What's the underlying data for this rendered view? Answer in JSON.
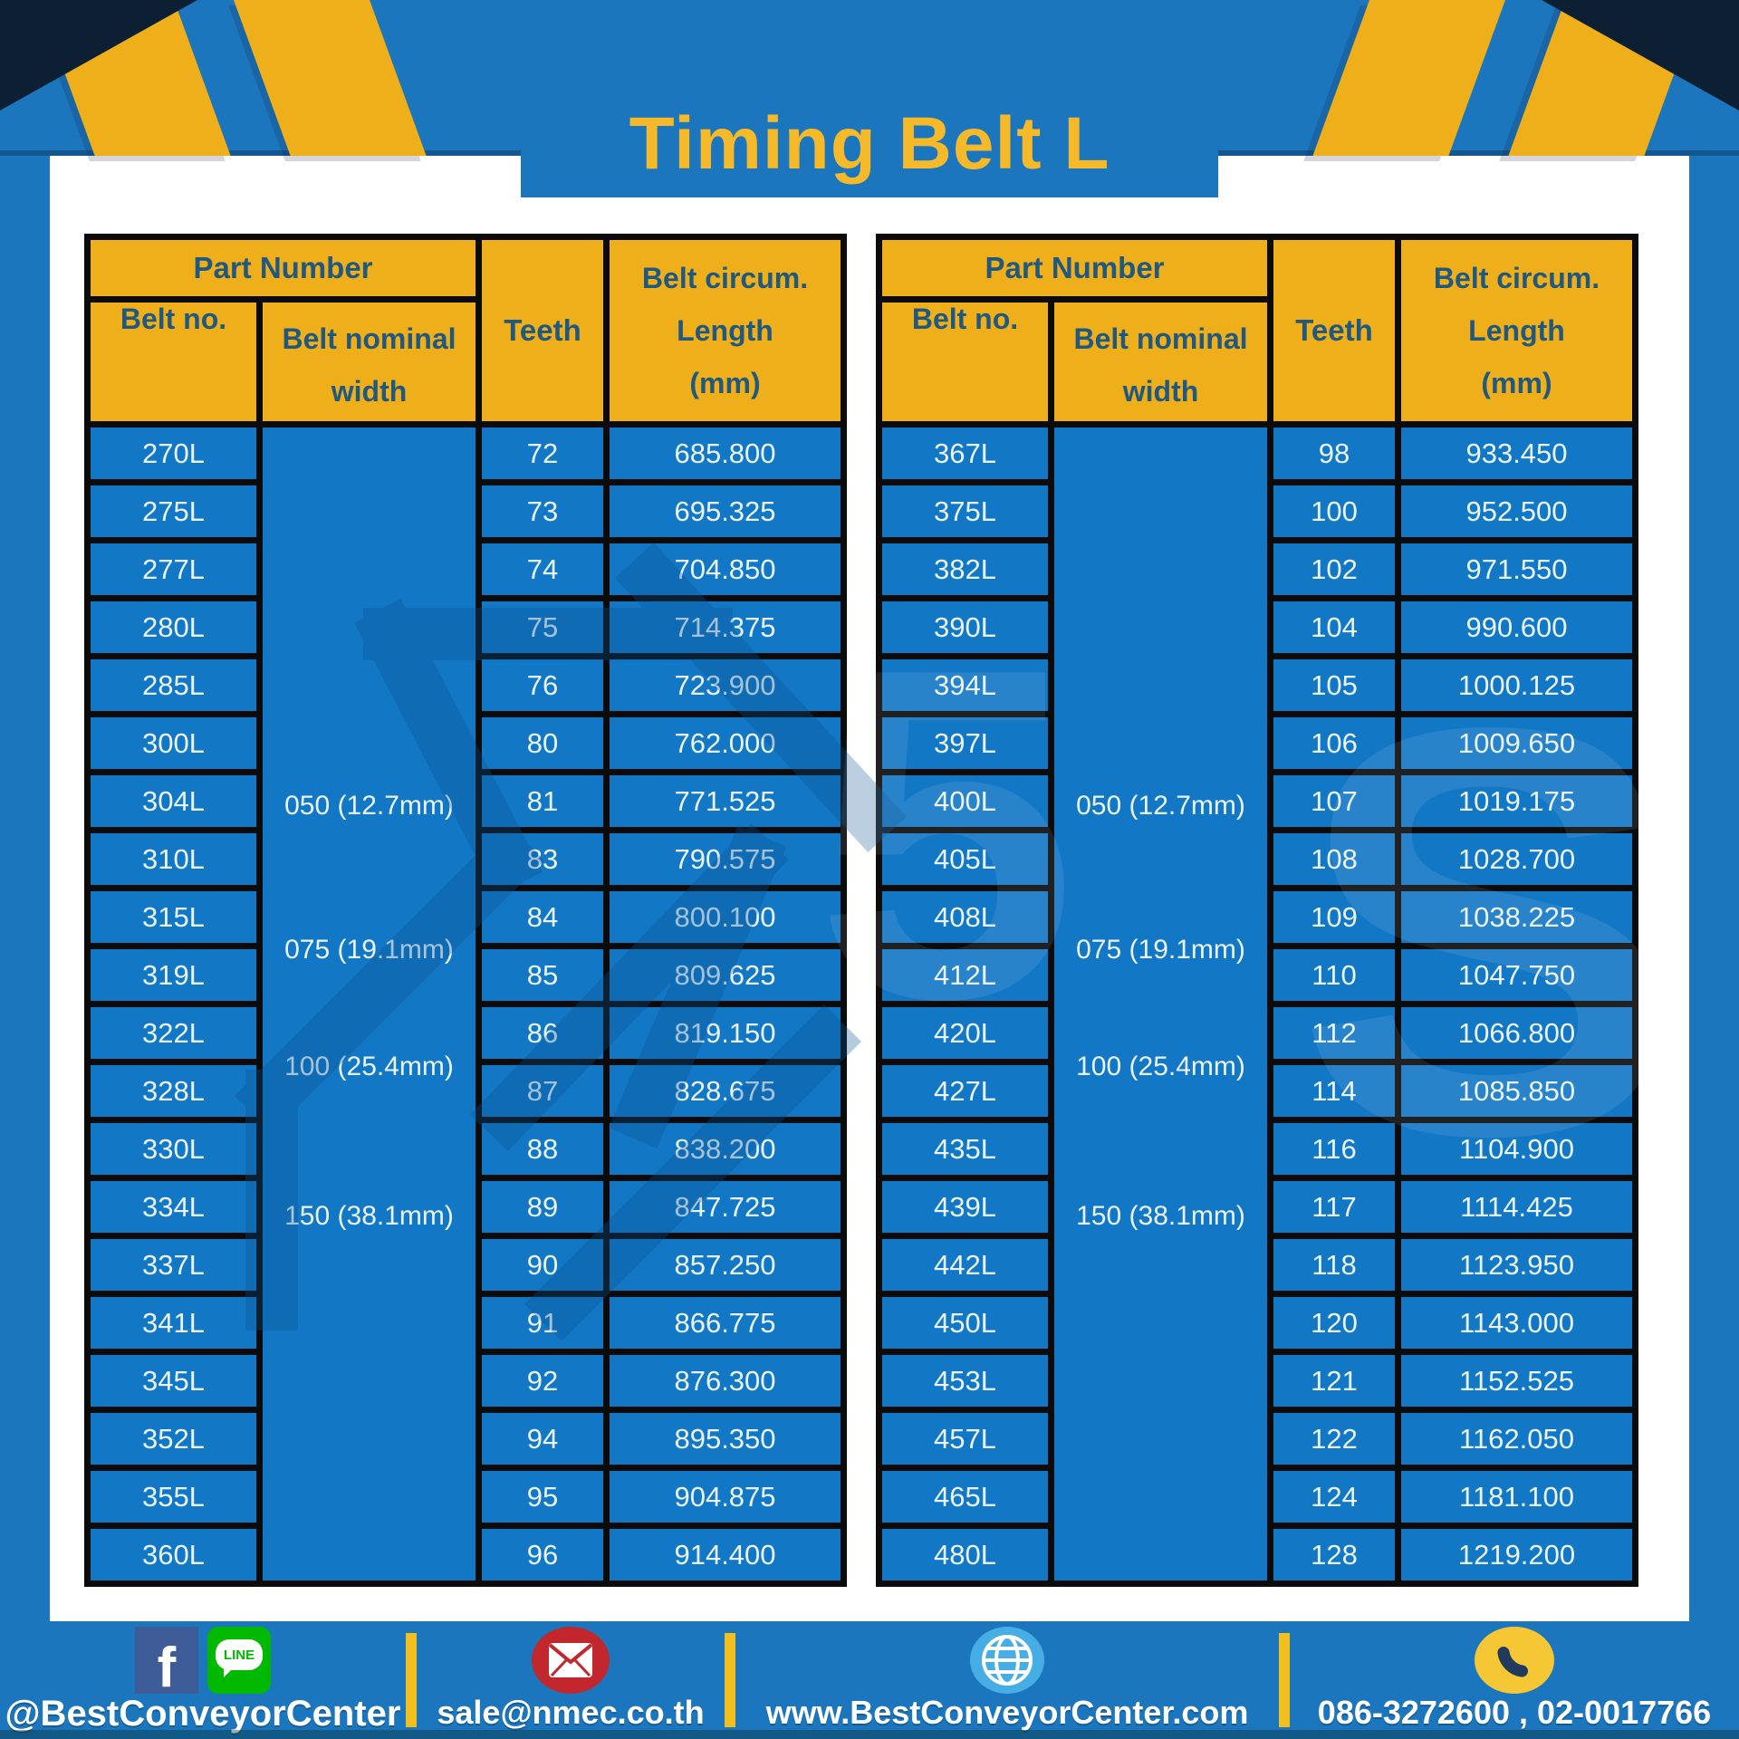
{
  "title": "Timing Belt L",
  "colors": {
    "brand_blue": "#1B76BD",
    "cell_blue": "#1277C5",
    "accent_yellow": "#EFAF1B",
    "title_yellow": "#F5B929",
    "header_text_navy": "#20587F",
    "footer_divider_yellow": "#F2C01E"
  },
  "tables": [
    {
      "header": {
        "part_number": "Part Number",
        "belt_no": "Belt no.",
        "belt_nominal_line1": "Belt nominal",
        "belt_nominal_line2": "width",
        "teeth": "Teeth",
        "circ_line1": "Belt circum.",
        "circ_line2": "Length",
        "circ_line3": "(mm)"
      },
      "width_labels": [
        "050 (12.7mm)",
        "075 (19.1mm)",
        "100 (25.4mm)",
        "150 (38.1mm)"
      ],
      "rows": [
        {
          "belt_no": "270L",
          "teeth": "72",
          "length_mm": "685.800"
        },
        {
          "belt_no": "275L",
          "teeth": "73",
          "length_mm": "695.325"
        },
        {
          "belt_no": "277L",
          "teeth": "74",
          "length_mm": "704.850"
        },
        {
          "belt_no": "280L",
          "teeth": "75",
          "length_mm": "714.375"
        },
        {
          "belt_no": "285L",
          "teeth": "76",
          "length_mm": "723.900"
        },
        {
          "belt_no": "300L",
          "teeth": "80",
          "length_mm": "762.000"
        },
        {
          "belt_no": "304L",
          "teeth": "81",
          "length_mm": "771.525"
        },
        {
          "belt_no": "310L",
          "teeth": "83",
          "length_mm": "790.575"
        },
        {
          "belt_no": "315L",
          "teeth": "84",
          "length_mm": "800.100"
        },
        {
          "belt_no": "319L",
          "teeth": "85",
          "length_mm": "809.625"
        },
        {
          "belt_no": "322L",
          "teeth": "86",
          "length_mm": "819.150"
        },
        {
          "belt_no": "328L",
          "teeth": "87",
          "length_mm": "828.675"
        },
        {
          "belt_no": "330L",
          "teeth": "88",
          "length_mm": "838.200"
        },
        {
          "belt_no": "334L",
          "teeth": "89",
          "length_mm": "847.725"
        },
        {
          "belt_no": "337L",
          "teeth": "90",
          "length_mm": "857.250"
        },
        {
          "belt_no": "341L",
          "teeth": "91",
          "length_mm": "866.775"
        },
        {
          "belt_no": "345L",
          "teeth": "92",
          "length_mm": "876.300"
        },
        {
          "belt_no": "352L",
          "teeth": "94",
          "length_mm": "895.350"
        },
        {
          "belt_no": "355L",
          "teeth": "95",
          "length_mm": "904.875"
        },
        {
          "belt_no": "360L",
          "teeth": "96",
          "length_mm": "914.400"
        }
      ]
    },
    {
      "header": {
        "part_number": "Part Number",
        "belt_no": "Belt no.",
        "belt_nominal_line1": "Belt nominal",
        "belt_nominal_line2": "width",
        "teeth": "Teeth",
        "circ_line1": "Belt circum.",
        "circ_line2": "Length",
        "circ_line3": "(mm)"
      },
      "width_labels": [
        "050 (12.7mm)",
        "075 (19.1mm)",
        "100 (25.4mm)",
        "150 (38.1mm)"
      ],
      "rows": [
        {
          "belt_no": "367L",
          "teeth": "98",
          "length_mm": "933.450"
        },
        {
          "belt_no": "375L",
          "teeth": "100",
          "length_mm": "952.500"
        },
        {
          "belt_no": "382L",
          "teeth": "102",
          "length_mm": "971.550"
        },
        {
          "belt_no": "390L",
          "teeth": "104",
          "length_mm": "990.600"
        },
        {
          "belt_no": "394L",
          "teeth": "105",
          "length_mm": "1000.125"
        },
        {
          "belt_no": "397L",
          "teeth": "106",
          "length_mm": "1009.650"
        },
        {
          "belt_no": "400L",
          "teeth": "107",
          "length_mm": "1019.175"
        },
        {
          "belt_no": "405L",
          "teeth": "108",
          "length_mm": "1028.700"
        },
        {
          "belt_no": "408L",
          "teeth": "109",
          "length_mm": "1038.225"
        },
        {
          "belt_no": "412L",
          "teeth": "110",
          "length_mm": "1047.750"
        },
        {
          "belt_no": "420L",
          "teeth": "112",
          "length_mm": "1066.800"
        },
        {
          "belt_no": "427L",
          "teeth": "114",
          "length_mm": "1085.850"
        },
        {
          "belt_no": "435L",
          "teeth": "116",
          "length_mm": "1104.900"
        },
        {
          "belt_no": "439L",
          "teeth": "117",
          "length_mm": "1114.425"
        },
        {
          "belt_no": "442L",
          "teeth": "118",
          "length_mm": "1123.950"
        },
        {
          "belt_no": "450L",
          "teeth": "120",
          "length_mm": "1143.000"
        },
        {
          "belt_no": "453L",
          "teeth": "121",
          "length_mm": "1152.525"
        },
        {
          "belt_no": "457L",
          "teeth": "122",
          "length_mm": "1162.050"
        },
        {
          "belt_no": "465L",
          "teeth": "124",
          "length_mm": "1181.100"
        },
        {
          "belt_no": "480L",
          "teeth": "128",
          "length_mm": "1219.200"
        }
      ]
    }
  ],
  "footer": {
    "social_handle": "@BestConveyorCenter",
    "line_badge_text": "LINE",
    "facebook_letter": "f",
    "email": "sale@nmec.co.th",
    "website": "www.BestConveyorCenter.com",
    "phones": "086-3272600 , 02-0017766",
    "icons": [
      "facebook-icon",
      "line-icon",
      "email-icon",
      "globe-icon",
      "phone-icon"
    ]
  }
}
